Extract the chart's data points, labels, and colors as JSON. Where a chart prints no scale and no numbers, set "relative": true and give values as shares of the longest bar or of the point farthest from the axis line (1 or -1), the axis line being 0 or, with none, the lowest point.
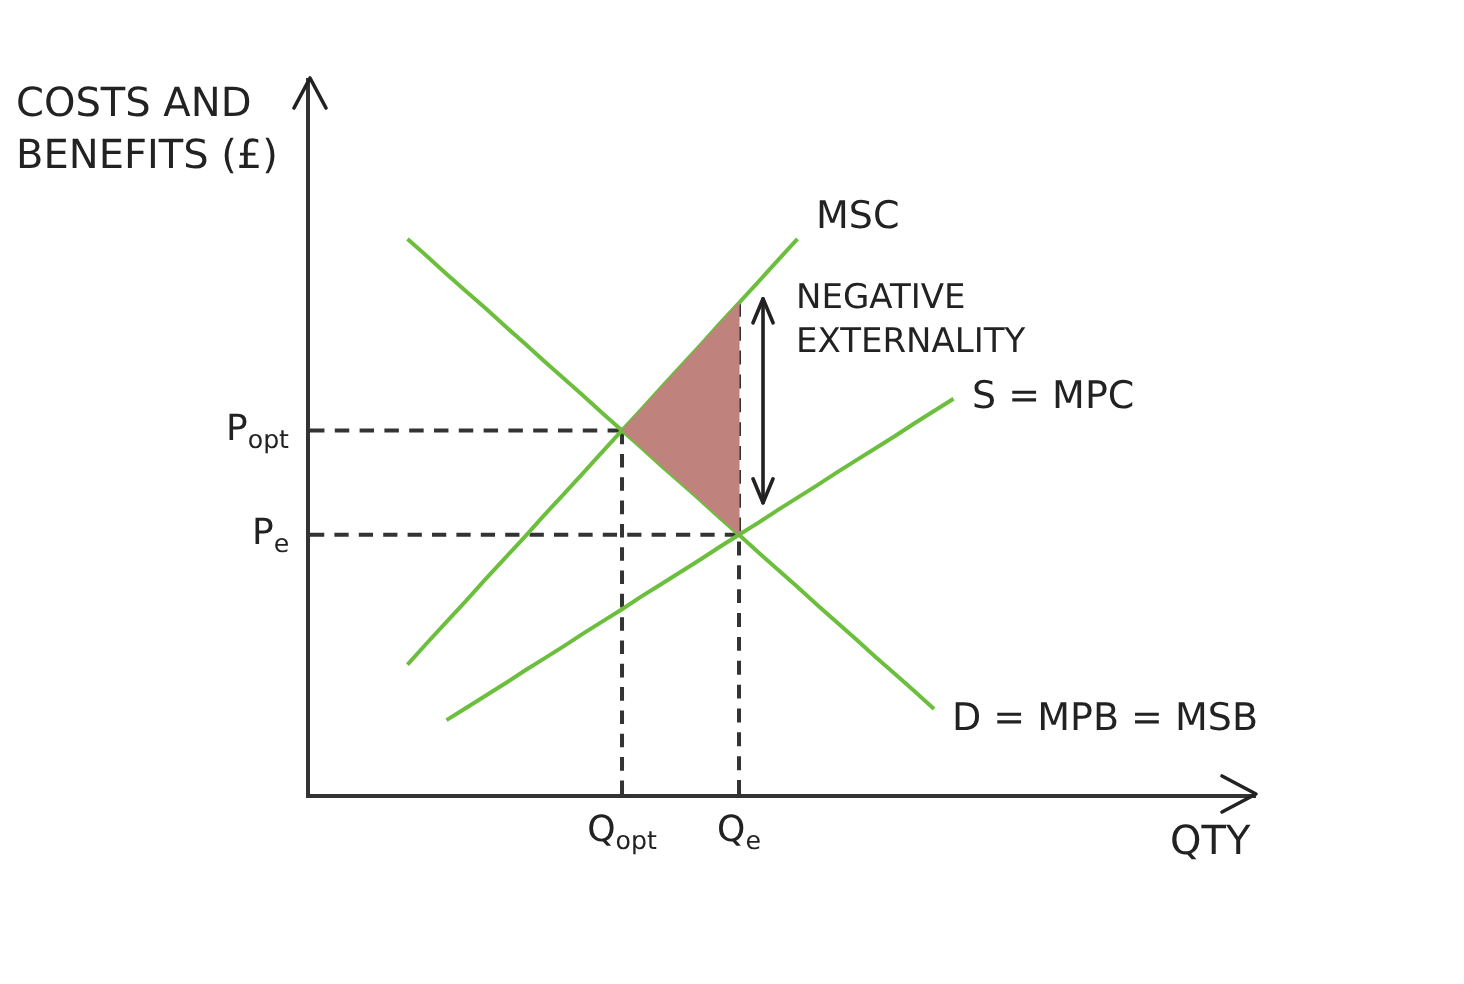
{
  "chart_data": {
    "type": "line",
    "relative": true,
    "ylabel": "COSTS AND\nBENEFITS (£)",
    "categories": [
      null,
      null,
      null,
      null,
      null,
      null,
      null,
      null,
      null,
      null,
      null,
      null,
      null,
      null,
      null,
      null,
      "Q$_{opt}$",
      null,
      null,
      null,
      null,
      null,
      "Q$_{e}$",
      null,
      null,
      null,
      null,
      null,
      null,
      null,
      null,
      null,
      null,
      null
    ],
    "grid": false,
    "legend": false,
    "annotations": [
      "QTY",
      {
        "text": "NEGATIVE\nEXTERNALITY",
        "x": "Q$_{e}$",
        "y": 0.885
      }
    ],
    "series": [
      {
        "name": "P$_{opt}$",
        "color": "#333333",
        "line_style": "dashed",
        "values": [
          0.655,
          0.655,
          0.655,
          0.655,
          0.655,
          0.655,
          0.655,
          0.655,
          0.655,
          0.655,
          0.655,
          0.655,
          0.655,
          0.655,
          0.655,
          0.655,
          0.655,
          null,
          null,
          null,
          null,
          null,
          null,
          null,
          null,
          null,
          null,
          null,
          null,
          null,
          null,
          null,
          null,
          null
        ]
      },
      {
        "color": "#333333",
        "line_style": "dashed",
        "x": [
          "Q$_{opt}$",
          "Q$_{opt}$"
        ],
        "values": [
          0,
          0.655
        ]
      },
      {
        "name": "P$_{e}$",
        "color": "#333333",
        "line_style": "dashed",
        "values": [
          0.467,
          0.467,
          0.467,
          0.467,
          0.467,
          0.467,
          0.467,
          0.467,
          0.467,
          0.467,
          0.467,
          0.467,
          0.467,
          0.467,
          0.467,
          0.467,
          0.467,
          0.467,
          0.467,
          0.467,
          0.467,
          0.467,
          0.467,
          null,
          null,
          null,
          null,
          null,
          null,
          null,
          null,
          null,
          null,
          null
        ]
      },
      {
        "color": "#333333",
        "line_style": "dashed",
        "x": [
          "Q$_{e}$",
          "Q$_{e}$"
        ],
        "values": [
          0,
          0.885
        ]
      },
      {
        "name": "MSC",
        "color": "#6cbf3c",
        "values": [
          null,
          null,
          null,
          null,
          null,
          0.233,
          0.272,
          0.31,
          0.348,
          0.387,
          0.425,
          0.463,
          0.502,
          0.54,
          0.578,
          0.617,
          0.655,
          0.693,
          0.732,
          0.77,
          0.808,
          0.847,
          0.885,
          0.923,
          0.962,
          1,
          null,
          null,
          null,
          null,
          null,
          null,
          null,
          null
        ]
      },
      {
        "name": "S = MPC",
        "color": "#6cbf3c",
        "values": [
          null,
          null,
          null,
          null,
          null,
          null,
          null,
          0.133,
          0.155,
          0.177,
          0.199,
          0.222,
          0.244,
          0.266,
          0.289,
          0.311,
          0.333,
          0.356,
          0.378,
          0.4,
          0.422,
          0.445,
          0.467,
          0.489,
          0.512,
          0.534,
          0.556,
          0.579,
          0.601,
          0.623,
          0.645,
          0.668,
          0.69,
          0.712
        ]
      },
      {
        "name": "D = MPB = MSB",
        "color": "#6cbf3c",
        "values": [
          null,
          null,
          null,
          null,
          null,
          1,
          0.969,
          0.937,
          0.906,
          0.875,
          0.843,
          0.812,
          0.78,
          0.749,
          0.718,
          0.686,
          0.655,
          0.624,
          0.592,
          0.561,
          0.53,
          0.498,
          0.467,
          0.435,
          0.404,
          0.373,
          0.341,
          0.31,
          0.279,
          0.247,
          0.216,
          0.185,
          0.153,
          null
        ]
      },
      {
        "type": "area",
        "color": "#bf827c",
        "x": [
          "Q$_{opt}$",
          "Q$_{e}$",
          "Q$_{e}$"
        ],
        "values": [
          0.655,
          0.885,
          0.467
        ]
      }
    ]
  }
}
